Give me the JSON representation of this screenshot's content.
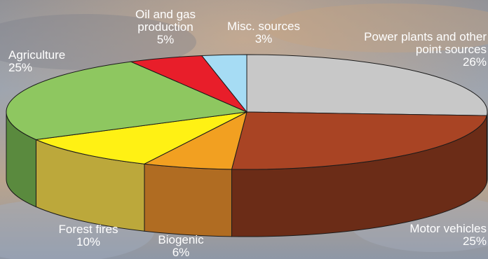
{
  "chart_data": {
    "type": "pie",
    "style": "3d",
    "title": "",
    "start_position": "12 o'clock",
    "direction": "clockwise",
    "slices": [
      {
        "name": "Power plants and other point sources",
        "label_lines": [
          "Power plants and other",
          "point sources"
        ],
        "value": 26,
        "value_label": "26%",
        "color": "#c8c8c8",
        "side_color": "#9a9a9a"
      },
      {
        "name": "Motor vehicles",
        "label_lines": [
          "Motor vehicles"
        ],
        "value": 25,
        "value_label": "25%",
        "color": "#a94424",
        "side_color": "#6b2c17"
      },
      {
        "name": "Biogenic",
        "label_lines": [
          "Biogenic"
        ],
        "value": 6,
        "value_label": "6%",
        "color": "#f2a021",
        "side_color": "#b06c22"
      },
      {
        "name": "Forest fires",
        "label_lines": [
          "Forest fires"
        ],
        "value": 10,
        "value_label": "10%",
        "color": "#fff114",
        "side_color": "#bca83b"
      },
      {
        "name": "Agriculture",
        "label_lines": [
          "Agriculture"
        ],
        "value": 25,
        "value_label": "25%",
        "color": "#8ec760",
        "side_color": "#5a8a3e"
      },
      {
        "name": "Oil and gas production",
        "label_lines": [
          "Oil and gas",
          "production"
        ],
        "value": 5,
        "value_label": "5%",
        "color": "#e81e2a",
        "side_color": "#a0151c"
      },
      {
        "name": "Misc. sources",
        "label_lines": [
          "Misc. sources"
        ],
        "value": 3,
        "value_label": "3%",
        "color": "#a6dcf4",
        "side_color": "#74a5bb"
      }
    ]
  }
}
